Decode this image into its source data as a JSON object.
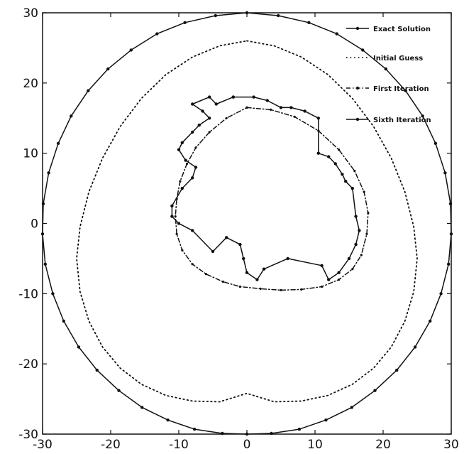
{
  "chart_data": {
    "type": "line",
    "title": "",
    "xlabel": "",
    "ylabel": "",
    "xlim": [
      -30,
      30
    ],
    "ylim": [
      -30,
      30
    ],
    "xticks": [
      -30,
      -20,
      -10,
      0,
      10,
      20,
      30
    ],
    "yticks": [
      -30,
      -20,
      -10,
      0,
      10,
      20,
      30
    ],
    "xtick_labels": [
      "-30",
      "-20",
      "-10",
      "0",
      "10",
      "20",
      "30"
    ],
    "ytick_labels": [
      "-30",
      "-20",
      "-10",
      "0",
      "10",
      "20",
      "30"
    ],
    "grid": false,
    "legend_position": "top-right",
    "series": [
      {
        "name": "Exact Solution",
        "style": "solid-dot",
        "color": "#111111",
        "x": [
          0,
          4.6,
          9.1,
          13.2,
          17,
          20.4,
          23.3,
          25.8,
          27.7,
          29.1,
          29.9,
          30,
          29.6,
          28.5,
          26.9,
          24.7,
          22,
          18.8,
          15.4,
          11.6,
          7.7,
          3.6,
          0,
          -3.6,
          -7.7,
          -11.6,
          -15.4,
          -18.8,
          -22,
          -24.7,
          -26.9,
          -28.5,
          -29.6,
          -30,
          -29.9,
          -29.1,
          -27.7,
          -25.8,
          -23.3,
          -20.4,
          -17,
          -13.2,
          -9.1,
          -4.6,
          0
        ],
        "y": [
          30,
          29.6,
          28.6,
          27,
          24.7,
          22,
          18.9,
          15.3,
          11.4,
          7.2,
          2.8,
          -1.5,
          -5.8,
          -10,
          -13.9,
          -17.6,
          -20.9,
          -23.8,
          -26.2,
          -28,
          -29.3,
          -29.9,
          -30,
          -29.9,
          -29.3,
          -28,
          -26.2,
          -23.8,
          -20.9,
          -17.6,
          -13.9,
          -10,
          -5.8,
          -1.5,
          2.8,
          7.2,
          11.4,
          15.3,
          18.9,
          22,
          24.7,
          27,
          28.6,
          29.6,
          30
        ]
      },
      {
        "name": "Initial Guess",
        "style": "dotted",
        "color": "#111111",
        "x": [
          0,
          4,
          8,
          11.9,
          15.5,
          18.6,
          21.2,
          23.2,
          24.5,
          25,
          24.5,
          23.2,
          21.2,
          18.6,
          15.5,
          11.9,
          8,
          4,
          0,
          -4,
          -8,
          -11.9,
          -15.5,
          -18.6,
          -21.2,
          -23.2,
          -24.5,
          -25,
          -24.5,
          -23.2,
          -21.2,
          -18.6,
          -15.5,
          -11.9,
          -8,
          -4,
          0
        ],
        "y": [
          26,
          25.3,
          23.7,
          21.2,
          17.8,
          13.8,
          9.3,
          4.5,
          -0.5,
          -5,
          -9.7,
          -13.9,
          -17.6,
          -20.6,
          -22.9,
          -24.5,
          -25.3,
          -25.4,
          -24.2,
          -25.4,
          -25.3,
          -24.5,
          -22.9,
          -20.6,
          -17.6,
          -13.9,
          -9.7,
          -5,
          -0.5,
          4.5,
          9.3,
          13.8,
          17.8,
          21.2,
          23.7,
          25.3,
          26
        ]
      },
      {
        "name": "First Iteration",
        "style": "dashdot-dot",
        "color": "#111111",
        "x": [
          0,
          3.5,
          7,
          10.5,
          13.5,
          15.8,
          17.2,
          17.8,
          17.6,
          16.8,
          15.5,
          13.5,
          11,
          8,
          5,
          2,
          -1,
          -3.5,
          -6,
          -8,
          -9.5,
          -10.3,
          -10.5,
          -10.3,
          -9.8,
          -8.8,
          -7.5,
          -5.5,
          -3,
          0
        ],
        "y": [
          16.5,
          16.2,
          15.2,
          13.2,
          10.5,
          7.5,
          4.5,
          1.5,
          -1.5,
          -4.5,
          -6.5,
          -8,
          -9,
          -9.4,
          -9.5,
          -9.3,
          -9,
          -8.3,
          -7.2,
          -5.8,
          -3.8,
          -1.5,
          1,
          3.5,
          6,
          8.5,
          10.8,
          13,
          15,
          16.5
        ]
      },
      {
        "name": "Sixth Iteration",
        "style": "solid-dot",
        "color": "#111111",
        "x": [
          -2,
          1,
          3,
          5,
          6.5,
          8.5,
          10.5,
          10.5,
          12,
          13,
          14,
          14.5,
          15.5,
          16,
          16.5,
          16,
          15,
          13.5,
          12,
          11,
          6,
          2.5,
          1.5,
          0,
          -0.5,
          -1,
          -3,
          -5,
          -8,
          -10,
          -11,
          -11,
          -9.5,
          -8,
          -7.5,
          -9,
          -10,
          -9.5,
          -8,
          -7,
          -5.5,
          -6.5,
          -8,
          -5.5,
          -4.5,
          -2
        ],
        "y": [
          18,
          18,
          17.5,
          16.5,
          16.5,
          16,
          15,
          10,
          9.5,
          8.5,
          7,
          6,
          5,
          1,
          -1,
          -3,
          -5,
          -7,
          -8,
          -6,
          -5,
          -6.5,
          -8,
          -7,
          -5,
          -3,
          -2,
          -4,
          -1,
          0,
          1,
          2.5,
          5,
          6.5,
          8,
          9,
          10.5,
          11.5,
          13,
          14,
          15,
          16,
          17,
          18,
          17,
          18
        ]
      }
    ]
  }
}
